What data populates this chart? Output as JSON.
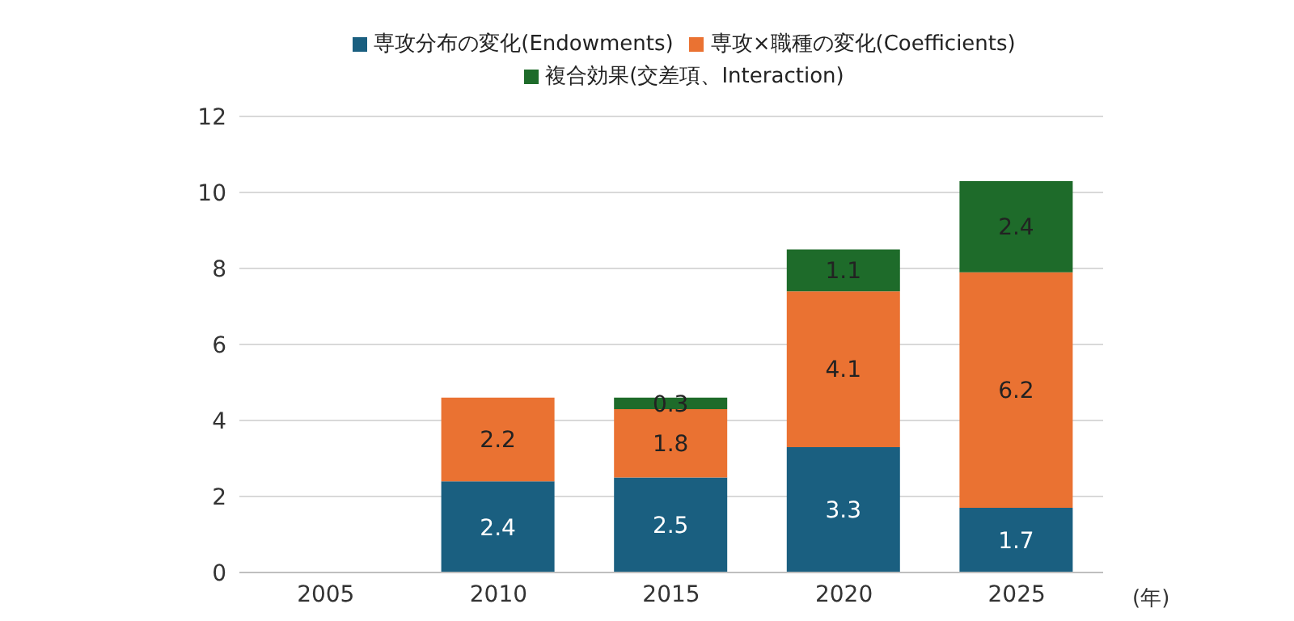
{
  "chart_data": {
    "type": "bar",
    "stacked": true,
    "categories": [
      "2005",
      "2010",
      "2015",
      "2020",
      "2025"
    ],
    "xlabel": "(年)",
    "series": [
      {
        "name": "専攻分布の変化(Endowments)",
        "color": "#1a5f80",
        "values": [
          null,
          2.4,
          2.5,
          3.3,
          1.7
        ]
      },
      {
        "name": "専攻×職種の変化(Coefficients)",
        "color": "#ea7232",
        "values": [
          null,
          2.2,
          1.8,
          4.1,
          6.2
        ]
      },
      {
        "name": "複合効果(交差項、Interaction)",
        "color": "#1e6b2a",
        "values": [
          null,
          null,
          0.3,
          1.1,
          2.4
        ]
      }
    ],
    "ylim": [
      0,
      12
    ],
    "yticks": [
      0,
      2,
      4,
      6,
      8,
      10,
      12
    ],
    "grid": "y",
    "legend": "top",
    "data_labels": true
  }
}
